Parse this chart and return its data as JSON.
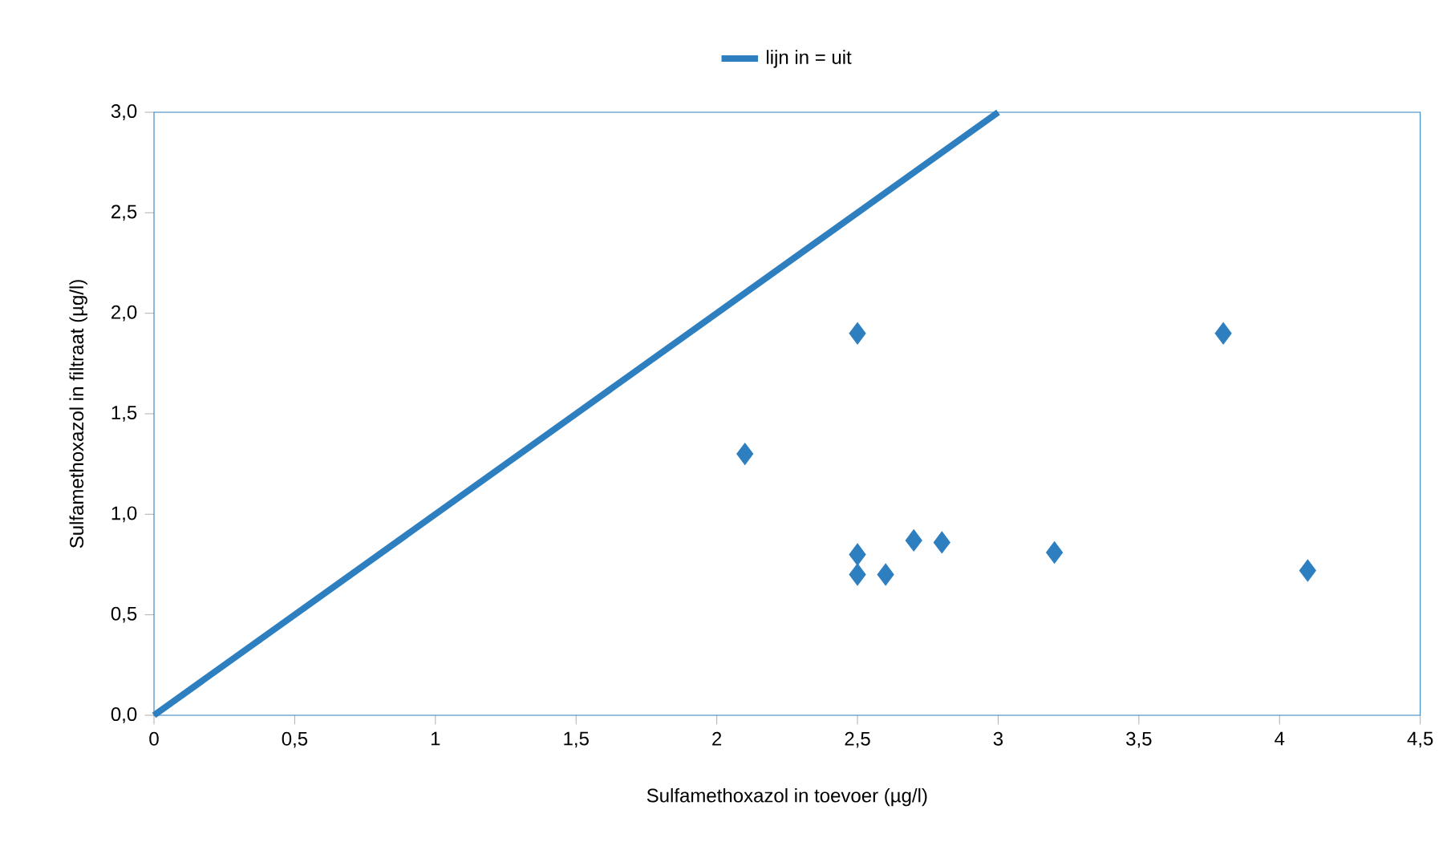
{
  "chart_data": {
    "type": "scatter",
    "xlabel": "Sulfamethoxazol in toevoer (µg/l)",
    "ylabel": "Sulfamethoxazol in filtraat (µg/l)",
    "xlim": [
      0,
      4.5
    ],
    "ylim": [
      0,
      3
    ],
    "xticks": [
      0,
      {
        "value": 0.5,
        "label": "0,5"
      },
      1,
      {
        "value": 1.5,
        "label": "1,5"
      },
      2,
      {
        "value": 2.5,
        "label": "2,5"
      },
      3,
      {
        "value": 3.5,
        "label": "3,5"
      },
      4,
      {
        "value": 4.5,
        "label": "4,5"
      }
    ],
    "yticks": [
      {
        "value": 0,
        "label": "0,0"
      },
      {
        "value": 0.5,
        "label": "0,5"
      },
      {
        "value": 1,
        "label": "1,0"
      },
      {
        "value": 1.5,
        "label": "1,5"
      },
      {
        "value": 2,
        "label": "2,0"
      },
      {
        "value": 2.5,
        "label": "2,5"
      },
      {
        "value": 3,
        "label": "3,0"
      }
    ],
    "grid": false,
    "legend": "top",
    "series": [
      {
        "marker": "diamond",
        "color": "#2e7fc0",
        "x": [
          2.1,
          2.5,
          2.5,
          2.5,
          2.6,
          2.7,
          2.8,
          3.2,
          3.8,
          4.1
        ],
        "values": [
          1.3,
          1.9,
          0.8,
          0.7,
          0.7,
          0.87,
          0.86,
          0.81,
          1.9,
          0.72
        ]
      },
      {
        "type": "line",
        "name": "lijn in = uit",
        "marker": "none",
        "line_style": "solid",
        "color": "#2e7fc0",
        "x": [
          0,
          3
        ],
        "values": [
          0,
          3
        ]
      }
    ]
  }
}
